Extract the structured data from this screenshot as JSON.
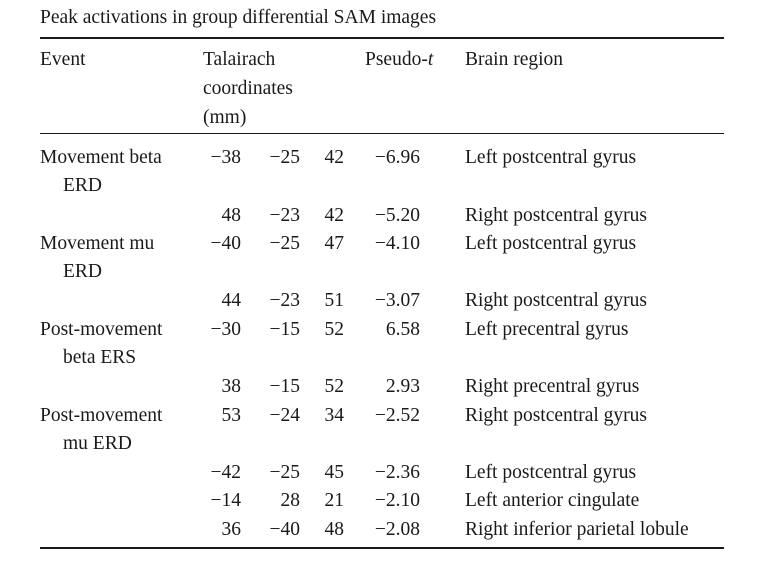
{
  "caption": "Peak activations in group differential SAM images",
  "headers": {
    "event": "Event",
    "coords_line1": "Talairach",
    "coords_line2": "coordinates",
    "coords_line3": "(mm)",
    "pseudo_prefix": "Pseudo-",
    "pseudo_t": "t",
    "region": "Brain region"
  },
  "rows": [
    {
      "event1": "Movement beta",
      "event2": "ERD",
      "x": "−38",
      "y": "−25",
      "z": "42",
      "t": "−6.96",
      "region": "Left postcentral gyrus"
    },
    {
      "event1": "",
      "event2": "",
      "x": "48",
      "y": "−23",
      "z": "42",
      "t": "−5.20",
      "region": "Right postcentral gyrus"
    },
    {
      "event1": "Movement mu",
      "event2": "ERD",
      "x": "−40",
      "y": "−25",
      "z": "47",
      "t": "−4.10",
      "region": "Left postcentral gyrus"
    },
    {
      "event1": "",
      "event2": "",
      "x": "44",
      "y": "−23",
      "z": "51",
      "t": "−3.07",
      "region": "Right postcentral gyrus"
    },
    {
      "event1": "Post-movement",
      "event2": "beta ERS",
      "x": "−30",
      "y": "−15",
      "z": "52",
      "t": "6.58",
      "region": "Left precentral gyrus"
    },
    {
      "event1": "",
      "event2": "",
      "x": "38",
      "y": "−15",
      "z": "52",
      "t": "2.93",
      "region": "Right precentral gyrus"
    },
    {
      "event1": "Post-movement",
      "event2": "mu ERD",
      "x": "53",
      "y": "−24",
      "z": "34",
      "t": "−2.52",
      "region": "Right postcentral gyrus"
    },
    {
      "event1": "",
      "event2": "",
      "x": "−42",
      "y": "−25",
      "z": "45",
      "t": "−2.36",
      "region": "Left postcentral gyrus"
    },
    {
      "event1": "",
      "event2": "",
      "x": "−14",
      "y": "28",
      "z": "21",
      "t": "−2.10",
      "region": "Left anterior cingulate"
    },
    {
      "event1": "",
      "event2": "",
      "x": "36",
      "y": "−40",
      "z": "48",
      "t": "−2.08",
      "region": "Right inferior parietal lobule"
    }
  ]
}
